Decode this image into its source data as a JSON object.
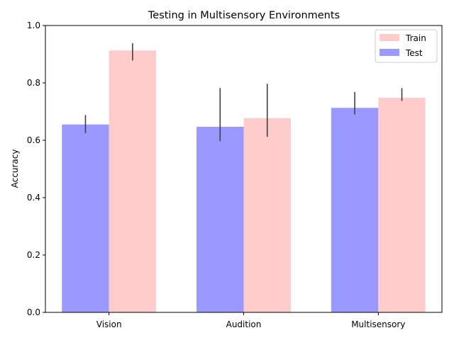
{
  "chart_data": {
    "type": "bar",
    "title": "Testing in Multisensory Environments",
    "xlabel": "",
    "ylabel": "Accuracy",
    "categories": [
      "Vision",
      "Audition",
      "Multisensory"
    ],
    "ylim": [
      0,
      1
    ],
    "yticks": [
      "0.0",
      "0.2",
      "0.4",
      "0.6",
      "0.8",
      "1.0"
    ],
    "grid": false,
    "legend_position": "top-right",
    "series": [
      {
        "name": "Test",
        "color": "#9999ff",
        "values": [
          0.655,
          0.647,
          0.713
        ],
        "error_low": [
          0.625,
          0.597,
          0.69
        ],
        "error_high": [
          0.688,
          0.782,
          0.768
        ]
      },
      {
        "name": "Train",
        "color": "#ffcccc",
        "values": [
          0.913,
          0.677,
          0.748
        ],
        "error_low": [
          0.878,
          0.612,
          0.737
        ],
        "error_high": [
          0.938,
          0.797,
          0.782
        ]
      }
    ],
    "legend_order": [
      "Train",
      "Test"
    ]
  }
}
